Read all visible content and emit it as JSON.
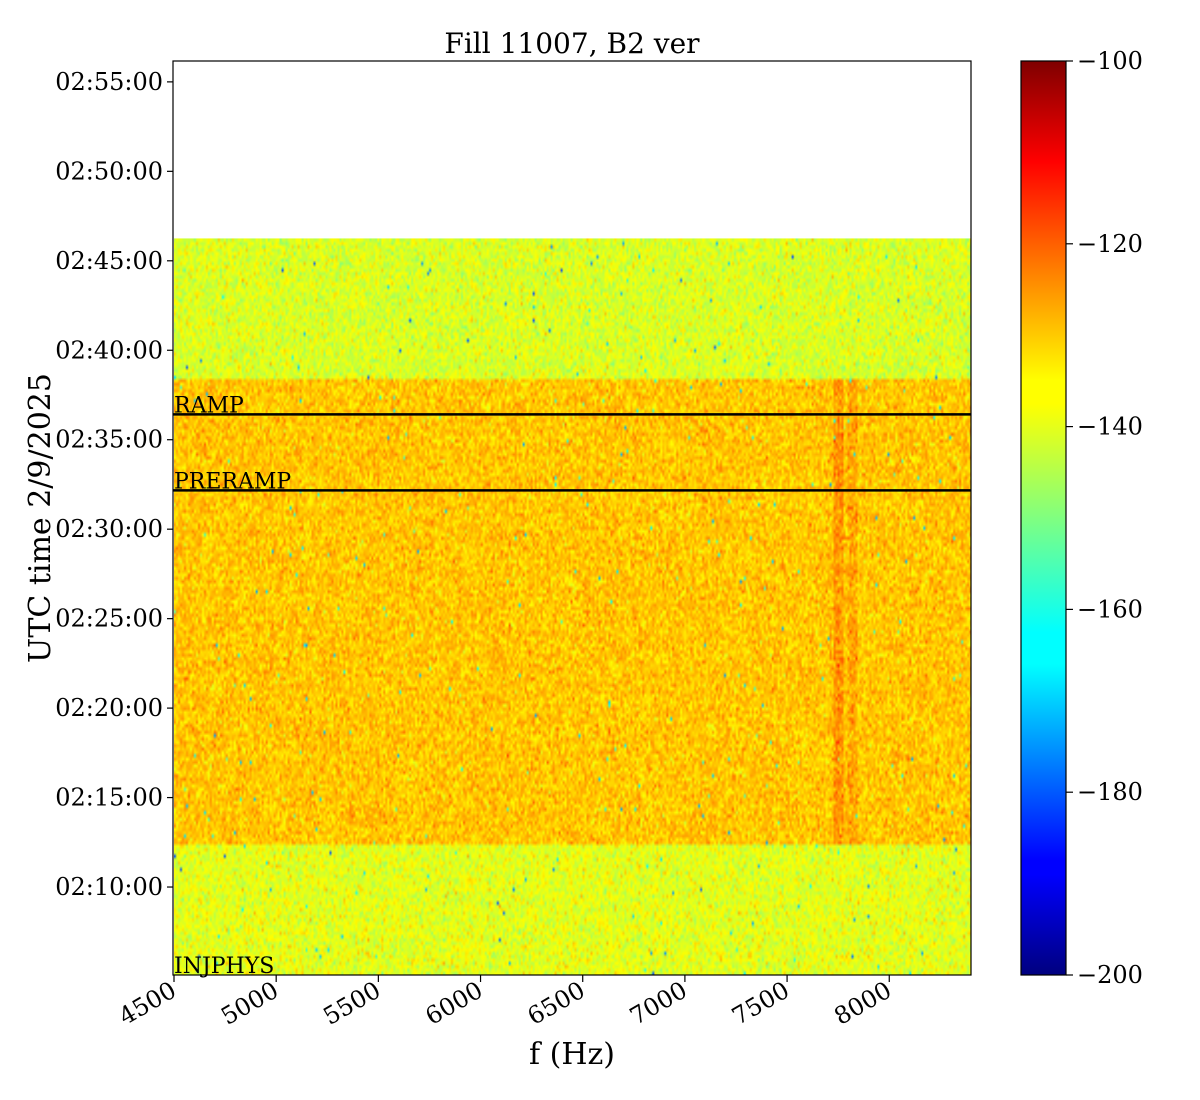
{
  "chart_data": {
    "type": "heatmap",
    "title": "Fill 11007, B2 ver",
    "xlabel": "f (Hz)",
    "ylabel": "UTC time 2/9/2025",
    "x_range_hz": [
      4500,
      8400
    ],
    "x_ticks": [
      4500,
      5000,
      5500,
      6000,
      6500,
      7000,
      7500,
      8000
    ],
    "x_tick_labels": [
      "4500",
      "5000",
      "5500",
      "6000",
      "6500",
      "7000",
      "7500",
      "8000"
    ],
    "y_range_utc": [
      "02:05:05",
      "02:56:10"
    ],
    "y_tick_labels": [
      "02:10:00",
      "02:15:00",
      "02:20:00",
      "02:25:00",
      "02:30:00",
      "02:35:00",
      "02:40:00",
      "02:45:00",
      "02:50:00",
      "02:55:00"
    ],
    "data_end_utc": "02:46:15",
    "colorbar": {
      "colormap": "jet",
      "range": [
        -200,
        -100
      ],
      "ticks": [
        -100,
        -120,
        -140,
        -160,
        -180,
        -200
      ],
      "tick_labels": [
        "−100",
        "−120",
        "−140",
        "−160",
        "−180",
        "−200"
      ]
    },
    "regions": [
      {
        "t_start": "02:05:05",
        "t_end": "02:12:20",
        "typical_level": -140
      },
      {
        "t_start": "02:12:20",
        "t_end": "02:38:20",
        "typical_level": -132
      },
      {
        "t_start": "02:38:20",
        "t_end": "02:46:15",
        "typical_level": -141
      }
    ],
    "spectral_features": [
      {
        "f_hz": 7750,
        "t_start": "02:12:20",
        "t_end": "02:38:20",
        "level": -127
      },
      {
        "f_hz": 7820,
        "t_start": "02:12:20",
        "t_end": "02:38:20",
        "level": -129
      }
    ],
    "events": [
      {
        "name": "RAMP",
        "time": "02:36:25"
      },
      {
        "name": "PRERAMP",
        "time": "02:32:10"
      },
      {
        "name": "INJPHYS",
        "time": "02:05:05"
      }
    ]
  }
}
